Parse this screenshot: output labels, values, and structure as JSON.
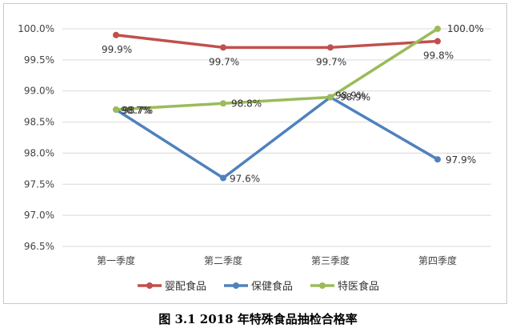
{
  "chart_data": {
    "type": "line",
    "categories": [
      "第一季度",
      "第二季度",
      "第三季度",
      "第四季度"
    ],
    "series": [
      {
        "name": "婴配食品",
        "values": [
          99.9,
          99.7,
          99.7,
          99.8
        ],
        "labels": [
          "99.9%",
          "99.7%",
          "99.7%",
          "99.8%"
        ],
        "color": "#C0504D"
      },
      {
        "name": "保健食品",
        "values": [
          98.7,
          97.6,
          98.9,
          97.9
        ],
        "labels": [
          "98.7%",
          "97.6%",
          "98.9%",
          "97.9%"
        ],
        "color": "#4F81BD"
      },
      {
        "name": "特医食品",
        "values": [
          98.7,
          98.8,
          98.9,
          100.0
        ],
        "labels": [
          "98.7%",
          "98.8%",
          "98.9%",
          "100.0%"
        ],
        "color": "#9BBB59"
      }
    ],
    "yticks": [
      "96.5%",
      "97.0%",
      "97.5%",
      "98.0%",
      "98.5%",
      "99.0%",
      "99.5%",
      "100.0%"
    ],
    "ylim": [
      96.5,
      100.0
    ],
    "grid": true,
    "legend": "bottom",
    "title": ""
  },
  "caption": "图 3.1 2018 年特殊食品抽检合格率"
}
